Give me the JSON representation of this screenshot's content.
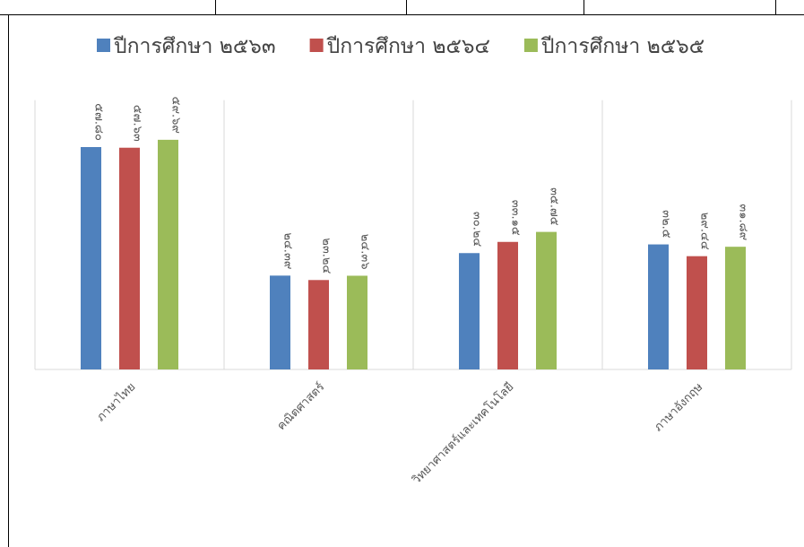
{
  "chart_data": {
    "type": "bar",
    "categories": [
      "ภาษาไทย",
      "คณิตศาสตร์",
      "วิทยาศาสตร์และเทคโนโลยี",
      "ภาษาอังกฤษ"
    ],
    "series": [
      {
        "name": "ปีการศึกษา ๒๕๖๓",
        "color": "#4F81BD",
        "values": [
          57.8,
          24.39,
          30.24,
          32.5
        ],
        "labels": [
          "๕๗.๘๐",
          "๒๔.๓๙",
          "๓๐.๒๔",
          "๓๒.๕"
        ]
      },
      {
        "name": "ปีการศึกษา ๒๕๖๔",
        "color": "#C0504D",
        "values": [
          57.63,
          23.24,
          33.15,
          29.44
        ],
        "labels": [
          "๕๗.๖๓",
          "๒๓.๒๔",
          "๓๓.๑๕",
          "๒๙.๔๔"
        ]
      },
      {
        "name": "ปีการศึกษา ๒๕๖๕",
        "color": "#9BBB59",
        "values": [
          59.69,
          24.36,
          35.75,
          31.89
        ],
        "labels": [
          "๕๙.๖๙",
          "๒๔.๓๖",
          "๓๕.๗๕",
          "๓๑.๘๙"
        ]
      }
    ],
    "ylim": [
      0,
      70
    ],
    "grid": false,
    "legend_position": "top"
  }
}
